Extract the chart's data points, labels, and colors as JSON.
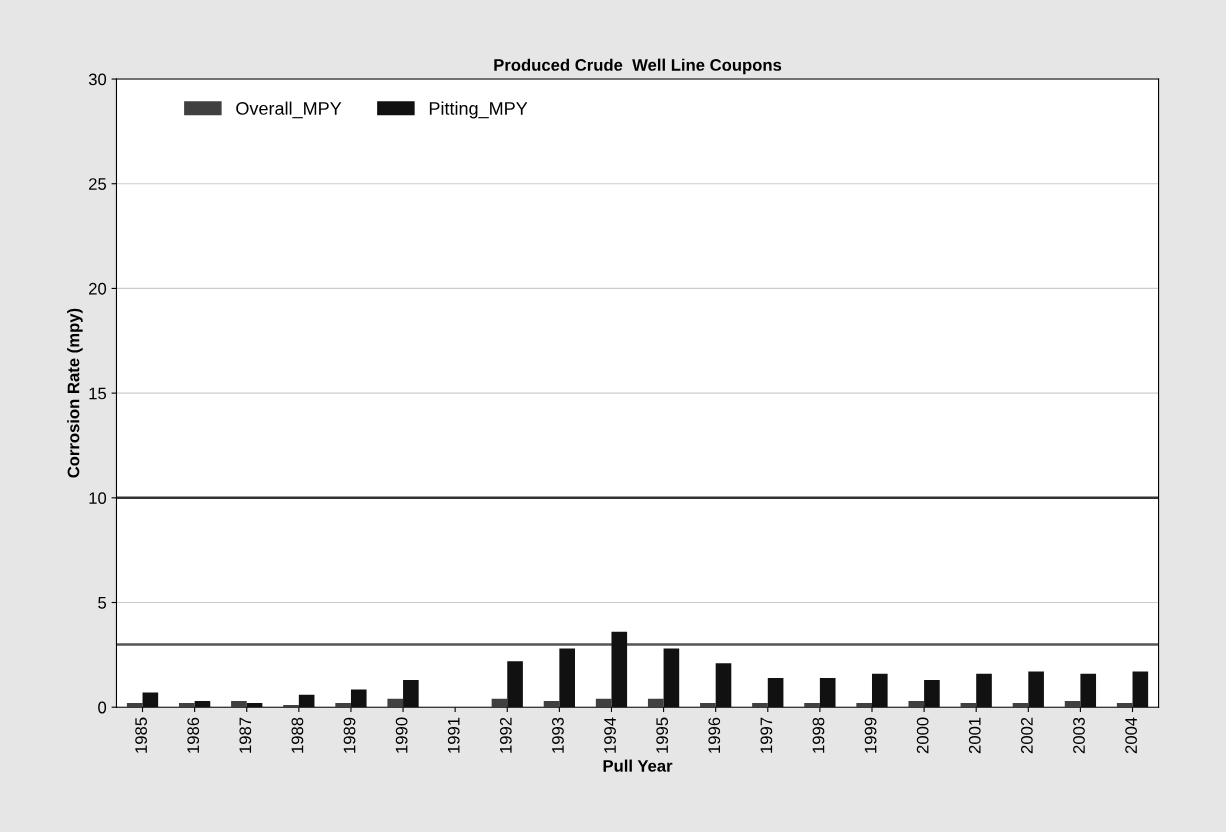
{
  "chart_data": {
    "type": "bar",
    "title": "Produced Crude  Well Line Coupons",
    "xlabel": "Pull Year",
    "ylabel": "Corrosion Rate (mpy)",
    "categories": [
      "1985",
      "1986",
      "1987",
      "1988",
      "1989",
      "1990",
      "1991",
      "1992",
      "1993",
      "1994",
      "1995",
      "1996",
      "1997",
      "1998",
      "1999",
      "2000",
      "2001",
      "2002",
      "2003",
      "2004"
    ],
    "series": [
      {
        "name": "Overall_MPY",
        "color": "#404040",
        "values": [
          0.2,
          0.2,
          0.3,
          0.1,
          0.2,
          0.4,
          null,
          0.4,
          0.3,
          0.4,
          0.4,
          0.2,
          0.2,
          0.2,
          0.2,
          0.3,
          0.2,
          0.2,
          0.3,
          0.2
        ]
      },
      {
        "name": "Pitting_MPY",
        "color": "#111111",
        "values": [
          0.7,
          0.3,
          0.2,
          0.6,
          0.85,
          1.3,
          null,
          2.2,
          2.8,
          3.6,
          2.8,
          2.1,
          1.4,
          1.4,
          1.6,
          1.3,
          1.6,
          1.7,
          1.6,
          1.7
        ]
      }
    ],
    "ylim": [
      0,
      30
    ],
    "yticks": [
      0,
      5,
      10,
      15,
      20,
      25,
      30
    ],
    "grid": "y",
    "legend": "top left",
    "ref_lines": [
      {
        "axis": "y",
        "value": 10,
        "color": "#333333"
      },
      {
        "axis": "y",
        "value": 3,
        "color": "#555555"
      }
    ]
  }
}
